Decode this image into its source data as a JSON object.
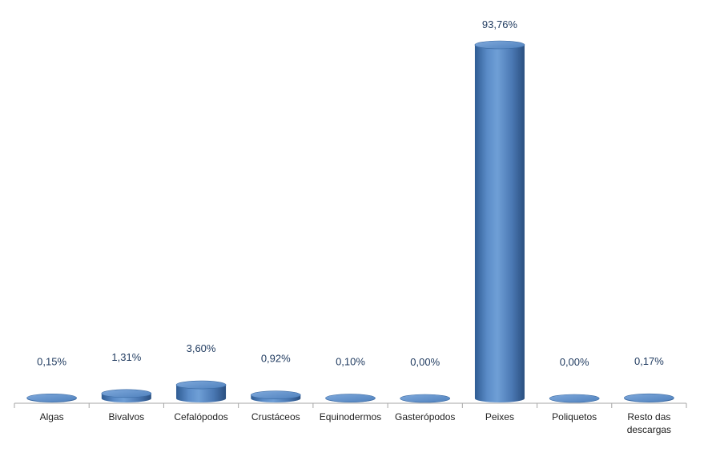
{
  "chart_data": {
    "type": "bar",
    "categories": [
      [
        "Algas"
      ],
      [
        "Bivalvos"
      ],
      [
        "Cefalópodos"
      ],
      [
        "Crustáceos"
      ],
      [
        "Equinodermos"
      ],
      [
        "Gasterópodos"
      ],
      [
        "Peixes"
      ],
      [
        "Poliquetos"
      ],
      [
        "Resto das",
        "descargas"
      ]
    ],
    "values": [
      0.15,
      1.31,
      3.6,
      0.92,
      0.1,
      0.0,
      93.76,
      0.0,
      0.17
    ],
    "value_labels": [
      "0,15%",
      "1,31%",
      "3,60%",
      "0,92%",
      "0,10%",
      "0,00%",
      "93,76%",
      "0,00%",
      "0,17%"
    ],
    "title": "",
    "xlabel": "",
    "ylabel": "",
    "ylim": [
      0,
      100
    ],
    "bar_style": "3d-cylinder",
    "bar_color": "#4f81bd",
    "grid": false,
    "legend": "none"
  }
}
